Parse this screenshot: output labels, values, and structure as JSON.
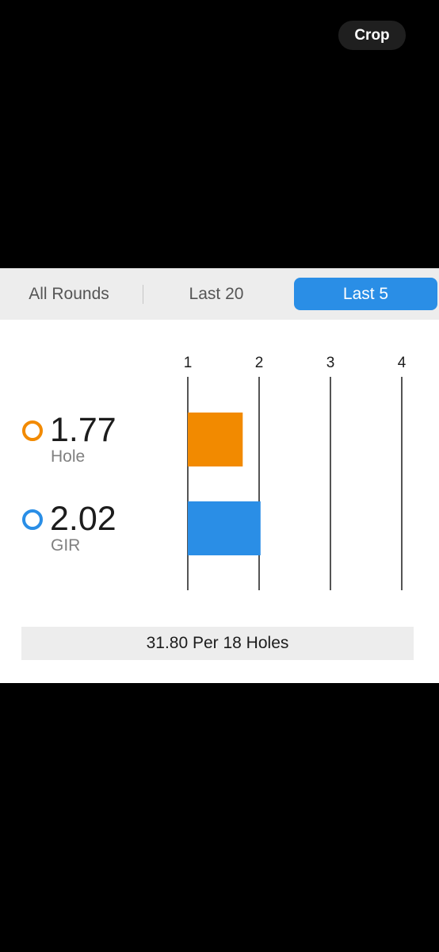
{
  "top_bar": {
    "crop_label": "Crop"
  },
  "tabs": [
    {
      "label": "All Rounds",
      "selected": false
    },
    {
      "label": "Last 20",
      "selected": false
    },
    {
      "label": "Last 5",
      "selected": true
    }
  ],
  "stats": [
    {
      "value": "1.77",
      "label": "Hole",
      "color": "#f28a00"
    },
    {
      "value": "2.02",
      "label": "GIR",
      "color": "#2a8ee6"
    }
  ],
  "chart_data": {
    "type": "bar",
    "orientation": "horizontal",
    "categories": [
      "Hole",
      "GIR"
    ],
    "values": [
      1.77,
      2.02
    ],
    "colors": [
      "#f28a00",
      "#2a8ee6"
    ],
    "xlim": [
      1,
      4
    ],
    "x_ticks": [
      1,
      2,
      3,
      4
    ],
    "grid": true
  },
  "footer": {
    "text": "31.80 Per 18 Holes"
  },
  "colors": {
    "accent": "#2a8ee6",
    "orange": "#f28a00",
    "panel_bg": "#ffffff",
    "segment_bg": "#ededed"
  }
}
